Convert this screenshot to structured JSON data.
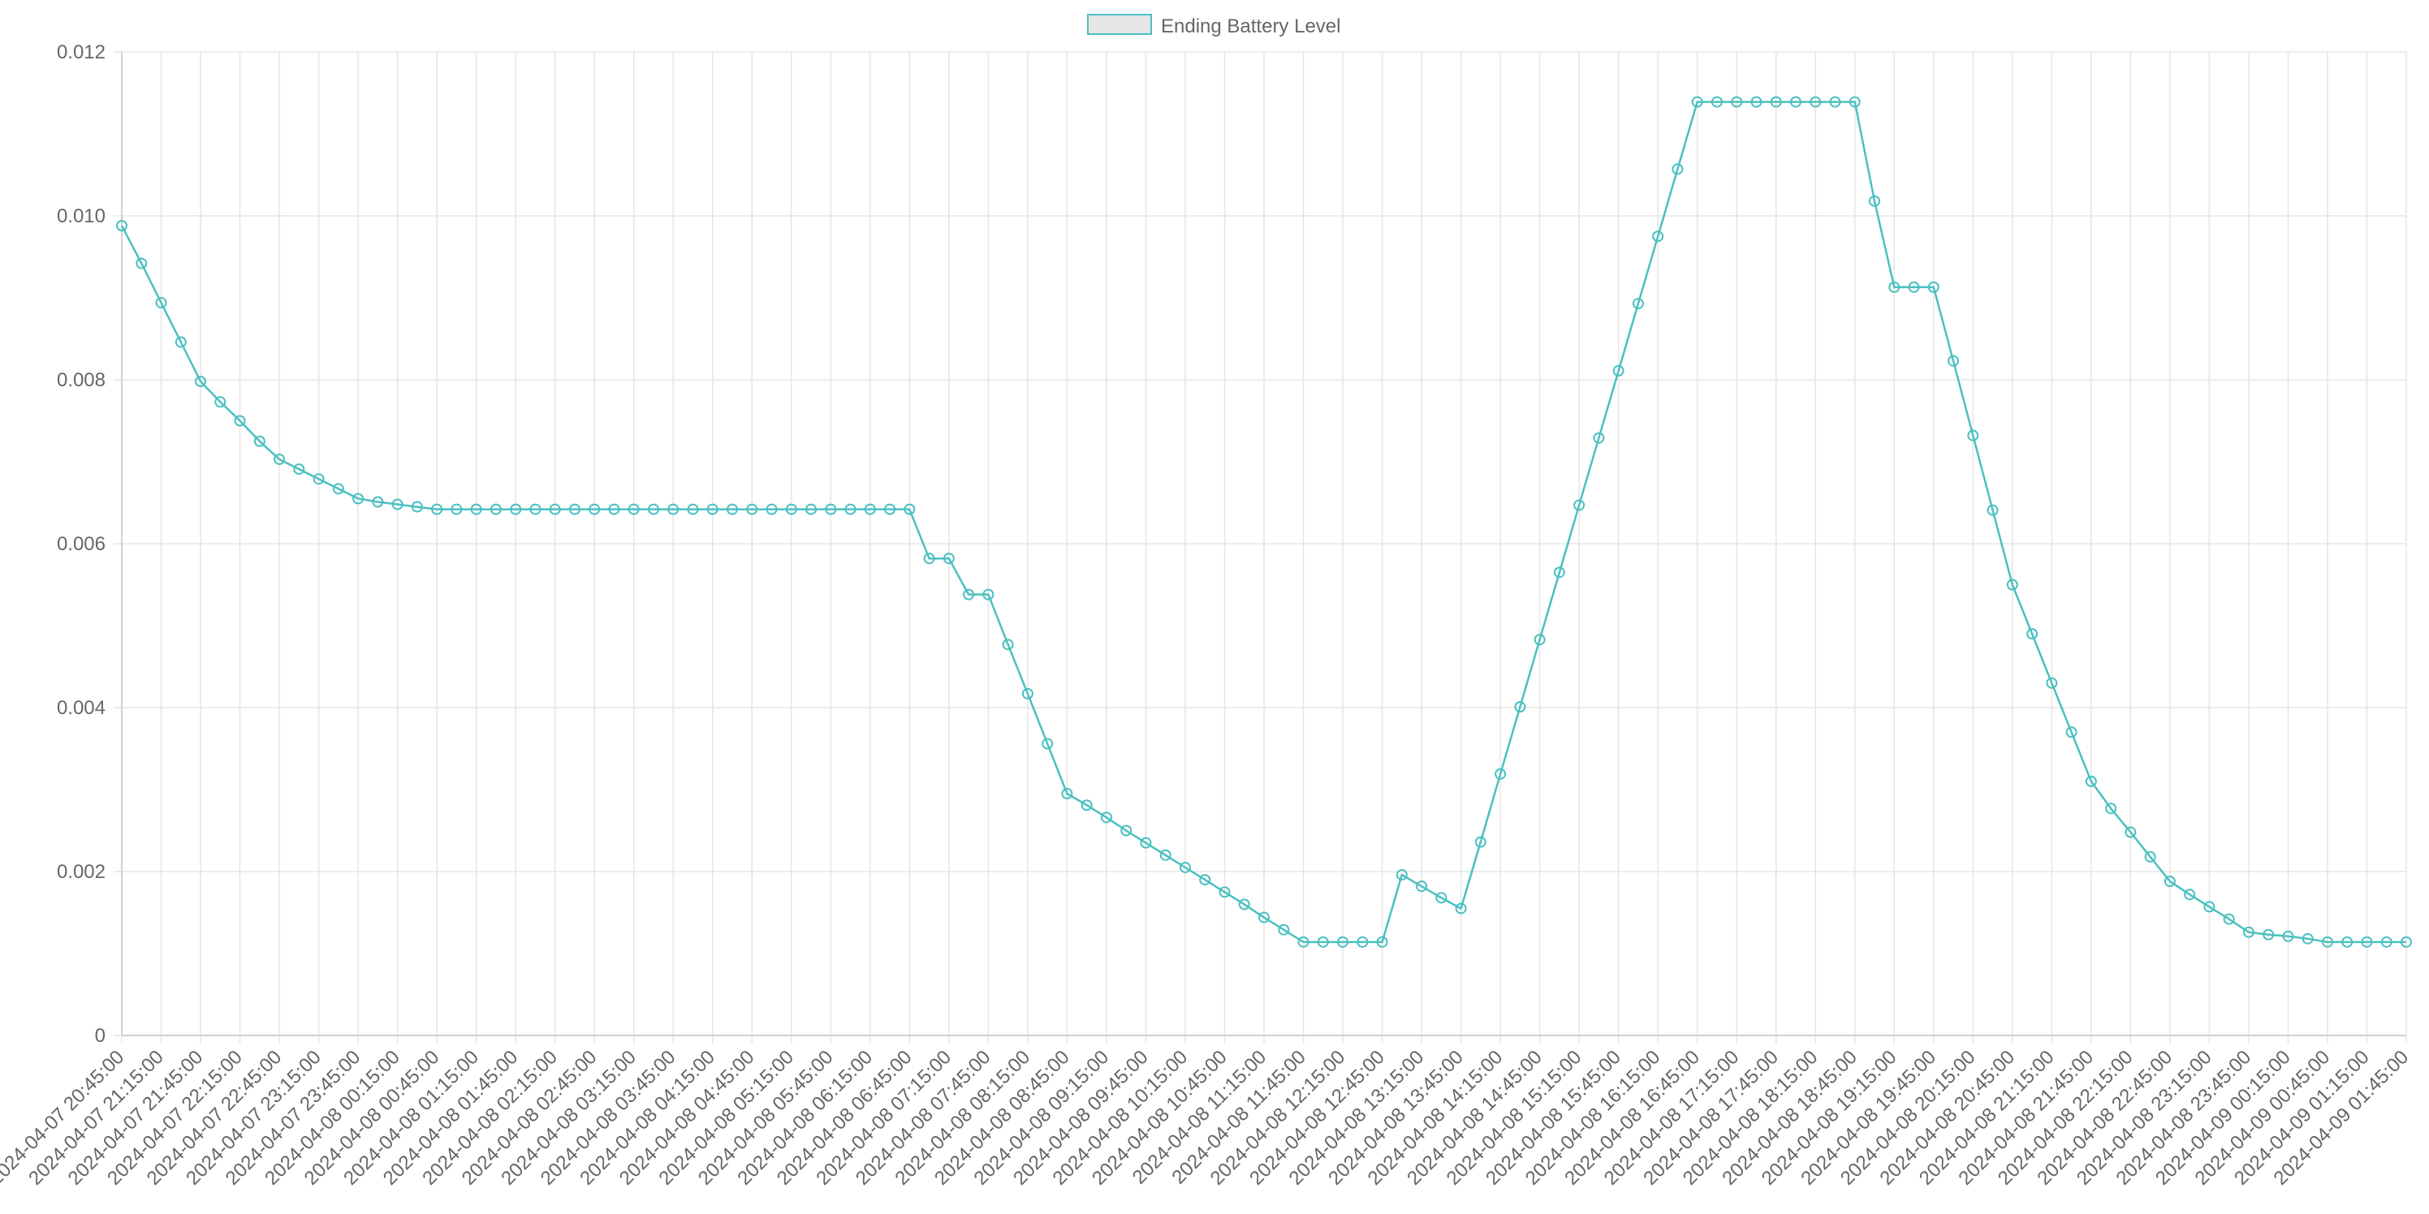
{
  "chart_data": {
    "type": "line",
    "legend": {
      "position": "top",
      "label": "Ending Battery Level"
    },
    "colors": {
      "line": "#4bc0c0",
      "legend_fill": "#e6e6e6",
      "grid": "#e5e5e5",
      "axis": "#d0d0d0",
      "text": "#666666"
    },
    "ylim": [
      0,
      0.012
    ],
    "yticks": [
      "0",
      "0.002",
      "0.004",
      "0.006",
      "0.008",
      "0.010",
      "0.012"
    ],
    "grid": true,
    "x": [
      "2024-04-07 20:45:00",
      "2024-04-07 21:00:00",
      "2024-04-07 21:15:00",
      "2024-04-07 21:30:00",
      "2024-04-07 21:45:00",
      "2024-04-07 22:00:00",
      "2024-04-07 22:15:00",
      "2024-04-07 22:30:00",
      "2024-04-07 22:45:00",
      "2024-04-07 23:00:00",
      "2024-04-07 23:15:00",
      "2024-04-07 23:30:00",
      "2024-04-07 23:45:00",
      "2024-04-08 00:00:00",
      "2024-04-08 00:15:00",
      "2024-04-08 00:30:00",
      "2024-04-08 00:45:00",
      "2024-04-08 01:00:00",
      "2024-04-08 01:15:00",
      "2024-04-08 01:30:00",
      "2024-04-08 01:45:00",
      "2024-04-08 02:00:00",
      "2024-04-08 02:15:00",
      "2024-04-08 02:30:00",
      "2024-04-08 02:45:00",
      "2024-04-08 03:00:00",
      "2024-04-08 03:15:00",
      "2024-04-08 03:30:00",
      "2024-04-08 03:45:00",
      "2024-04-08 04:00:00",
      "2024-04-08 04:15:00",
      "2024-04-08 04:30:00",
      "2024-04-08 04:45:00",
      "2024-04-08 05:00:00",
      "2024-04-08 05:15:00",
      "2024-04-08 05:30:00",
      "2024-04-08 05:45:00",
      "2024-04-08 06:00:00",
      "2024-04-08 06:15:00",
      "2024-04-08 06:30:00",
      "2024-04-08 06:45:00",
      "2024-04-08 07:00:00",
      "2024-04-08 07:15:00",
      "2024-04-08 07:30:00",
      "2024-04-08 07:45:00",
      "2024-04-08 08:00:00",
      "2024-04-08 08:15:00",
      "2024-04-08 08:30:00",
      "2024-04-08 08:45:00",
      "2024-04-08 09:00:00",
      "2024-04-08 09:15:00",
      "2024-04-08 09:30:00",
      "2024-04-08 09:45:00",
      "2024-04-08 10:00:00",
      "2024-04-08 10:15:00",
      "2024-04-08 10:30:00",
      "2024-04-08 10:45:00",
      "2024-04-08 11:00:00",
      "2024-04-08 11:15:00",
      "2024-04-08 11:30:00",
      "2024-04-08 11:45:00",
      "2024-04-08 12:00:00",
      "2024-04-08 12:15:00",
      "2024-04-08 12:30:00",
      "2024-04-08 12:45:00",
      "2024-04-08 13:00:00",
      "2024-04-08 13:15:00",
      "2024-04-08 13:30:00",
      "2024-04-08 13:45:00",
      "2024-04-08 14:00:00",
      "2024-04-08 14:15:00",
      "2024-04-08 14:30:00",
      "2024-04-08 14:45:00",
      "2024-04-08 15:00:00",
      "2024-04-08 15:15:00",
      "2024-04-08 15:30:00",
      "2024-04-08 15:45:00",
      "2024-04-08 16:00:00",
      "2024-04-08 16:15:00",
      "2024-04-08 16:30:00",
      "2024-04-08 16:45:00",
      "2024-04-08 17:00:00",
      "2024-04-08 17:15:00",
      "2024-04-08 17:30:00",
      "2024-04-08 17:45:00",
      "2024-04-08 18:00:00",
      "2024-04-08 18:15:00",
      "2024-04-08 18:30:00",
      "2024-04-08 18:45:00",
      "2024-04-08 19:00:00",
      "2024-04-08 19:15:00",
      "2024-04-08 19:30:00",
      "2024-04-08 19:45:00",
      "2024-04-08 20:00:00",
      "2024-04-08 20:15:00",
      "2024-04-08 20:30:00",
      "2024-04-08 20:45:00",
      "2024-04-08 21:00:00",
      "2024-04-08 21:15:00",
      "2024-04-08 21:30:00",
      "2024-04-08 21:45:00",
      "2024-04-08 22:00:00",
      "2024-04-08 22:15:00",
      "2024-04-08 22:30:00",
      "2024-04-08 22:45:00",
      "2024-04-08 23:00:00",
      "2024-04-08 23:15:00",
      "2024-04-08 23:30:00",
      "2024-04-08 23:45:00",
      "2024-04-09 00:00:00",
      "2024-04-09 00:15:00",
      "2024-04-09 00:30:00",
      "2024-04-09 00:45:00",
      "2024-04-09 01:00:00",
      "2024-04-09 01:15:00",
      "2024-04-09 01:30:00",
      "2024-04-09 01:45:00"
    ],
    "series": [
      {
        "name": "Ending Battery Level",
        "values": [
          0.00988,
          0.00942,
          0.00894,
          0.00846,
          0.00798,
          0.00773,
          0.0075,
          0.00725,
          0.00703,
          0.00691,
          0.00679,
          0.00667,
          0.00655,
          0.00651,
          0.00648,
          0.00645,
          0.00642,
          0.00642,
          0.00642,
          0.00642,
          0.00642,
          0.00642,
          0.00642,
          0.00642,
          0.00642,
          0.00642,
          0.00642,
          0.00642,
          0.00642,
          0.00642,
          0.00642,
          0.00642,
          0.00642,
          0.00642,
          0.00642,
          0.00642,
          0.00642,
          0.00642,
          0.00642,
          0.00642,
          0.00642,
          0.00582,
          0.00582,
          0.00538,
          0.00538,
          0.00477,
          0.00417,
          0.00356,
          0.00295,
          0.00281,
          0.00266,
          0.0025,
          0.00235,
          0.0022,
          0.00205,
          0.0019,
          0.00175,
          0.0016,
          0.00144,
          0.00129,
          0.00114,
          0.00114,
          0.00114,
          0.00114,
          0.00114,
          0.00196,
          0.00182,
          0.00168,
          0.00155,
          0.00236,
          0.00319,
          0.00401,
          0.00483,
          0.00565,
          0.00647,
          0.00729,
          0.00811,
          0.00893,
          0.00975,
          0.01057,
          0.01139,
          0.01139,
          0.01139,
          0.01139,
          0.01139,
          0.01139,
          0.01139,
          0.01139,
          0.01139,
          0.01018,
          0.00913,
          0.00913,
          0.00913,
          0.00823,
          0.00732,
          0.00641,
          0.0055,
          0.0049,
          0.0043,
          0.0037,
          0.0031,
          0.00277,
          0.00248,
          0.00218,
          0.00188,
          0.00172,
          0.00157,
          0.00142,
          0.00126,
          0.00123,
          0.00121,
          0.00118,
          0.00114,
          0.00114,
          0.00114,
          0.00114,
          0.00114
        ]
      }
    ]
  }
}
